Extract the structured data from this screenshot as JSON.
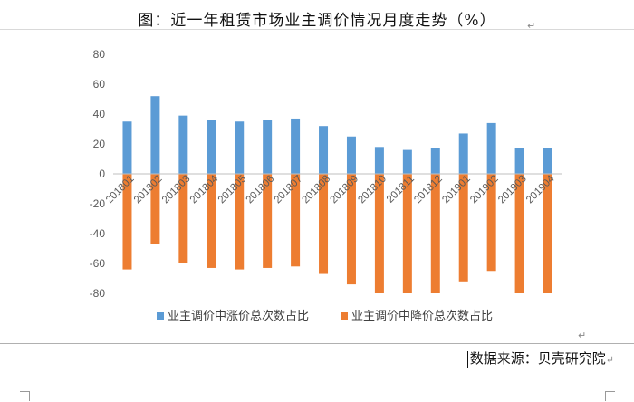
{
  "page": {
    "title": "图：近一年租赁市场业主调价情况月度走势（%）",
    "source": "数据来源：贝壳研究院"
  },
  "chart_data": {
    "type": "bar",
    "title": "",
    "xlabel": "",
    "ylabel": "",
    "ylim": [
      -80,
      80
    ],
    "yticks": [
      80,
      60,
      40,
      20,
      0,
      -20,
      -40,
      -60,
      -80
    ],
    "grid": false,
    "legend_position": "bottom",
    "categories": [
      "201801",
      "201802",
      "201803",
      "201804",
      "201805",
      "201806",
      "201807",
      "201808",
      "201809",
      "201810",
      "201811",
      "201812",
      "201901",
      "201902",
      "201903",
      "201904"
    ],
    "series": [
      {
        "name": "业主调价中涨价总次数占比",
        "color": "#5b9bd5",
        "values": [
          35,
          52,
          39,
          36,
          35,
          36,
          37,
          32,
          25,
          18,
          16,
          17,
          27,
          34,
          17,
          17
        ]
      },
      {
        "name": "业主调价中降价总次数占比",
        "color": "#ed7d31",
        "values": [
          -64,
          -47,
          -60,
          -63,
          -64,
          -63,
          -62,
          -67,
          -74,
          -80,
          -80,
          -80,
          -72,
          -65,
          -80,
          -80
        ]
      }
    ]
  }
}
